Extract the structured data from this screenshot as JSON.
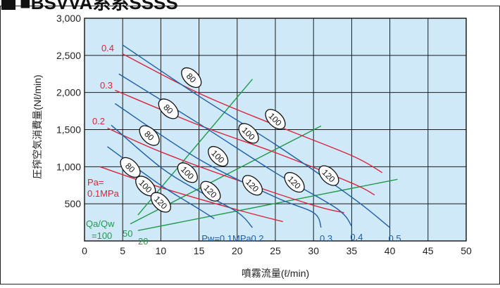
{
  "heading": "■BSVVA系系SSSS",
  "chart_data": {
    "type": "line",
    "xlabel": "噴霧流量(ℓ/min)",
    "ylabel": "圧搾空気消費量(Nℓ/min)",
    "xlim": [
      0,
      50
    ],
    "ylim": [
      0,
      3000
    ],
    "x_ticks": [
      0,
      5,
      10,
      15,
      20,
      25,
      30,
      35,
      40,
      45,
      50
    ],
    "x_tick_labels": [
      "0",
      "5",
      "10",
      "15",
      "20",
      "25",
      "30",
      "35",
      "40",
      "45",
      "50"
    ],
    "y_ticks": [
      500,
      1000,
      1500,
      2000,
      2500,
      3000
    ],
    "y_tick_labels": [
      "500",
      "1,000",
      "1,500",
      "2,000",
      "2,500",
      "3,000"
    ],
    "grid": true,
    "colors": {
      "plot_bg": "#cfe9f8",
      "grid": "#1a1a1a",
      "pa": "#d8253c",
      "pw": "#1f5fa8",
      "ratio": "#1f9a4a"
    },
    "air_pressure_curves": [
      {
        "label": "0.4",
        "points": [
          [
            5,
            2520
          ],
          [
            15,
            1990
          ],
          [
            25,
            1560
          ],
          [
            35,
            1150
          ],
          [
            39,
            920
          ]
        ]
      },
      {
        "label": "0.3",
        "points": [
          [
            4,
            2030
          ],
          [
            15,
            1560
          ],
          [
            25,
            1190
          ],
          [
            35,
            780
          ],
          [
            38,
            620
          ]
        ]
      },
      {
        "label": "0.2",
        "points": [
          [
            3,
            1520
          ],
          [
            10,
            1200
          ],
          [
            20,
            820
          ],
          [
            30,
            480
          ],
          [
            34,
            380
          ]
        ]
      },
      {
        "label": "Pa=\n0.1MPa",
        "points": [
          [
            2,
            1000
          ],
          [
            10,
            720
          ],
          [
            20,
            420
          ],
          [
            26,
            260
          ]
        ]
      }
    ],
    "water_pressure_curves": [
      {
        "label": "0.5",
        "points": [
          [
            5,
            2640
          ],
          [
            15,
            1950
          ],
          [
            25,
            1300
          ],
          [
            35,
            590
          ],
          [
            40,
            180
          ]
        ]
      },
      {
        "label": "0.4",
        "points": [
          [
            4.5,
            2250
          ],
          [
            15,
            1580
          ],
          [
            25,
            920
          ],
          [
            33,
            440
          ],
          [
            35,
            200
          ]
        ]
      },
      {
        "label": "0.3",
        "points": [
          [
            4,
            1850
          ],
          [
            15,
            1100
          ],
          [
            25,
            590
          ],
          [
            30,
            380
          ],
          [
            31,
            180
          ]
        ]
      },
      {
        "label": "0.2",
        "points": [
          [
            3.5,
            1560
          ],
          [
            10,
            990
          ],
          [
            15,
            670
          ],
          [
            20,
            390
          ],
          [
            22,
            180
          ]
        ]
      },
      {
        "label": "Pw=0.1MPa",
        "points": [
          [
            3,
            1270
          ],
          [
            10,
            750
          ],
          [
            15,
            430
          ],
          [
            17,
            300
          ]
        ]
      }
    ],
    "qa_qw_lines": [
      {
        "label": "20",
        "points": [
          [
            7,
            140
          ],
          [
            41,
            830
          ]
        ]
      },
      {
        "label": "50",
        "points": [
          [
            6,
            230
          ],
          [
            31,
            1550
          ]
        ]
      },
      {
        "label": "=100",
        "points": [
          [
            7,
            350
          ],
          [
            22,
            2180
          ]
        ]
      }
    ],
    "qa_qw_prefix": "Qa/Qw",
    "flow_markers": [
      {
        "label": "80",
        "x": 14,
        "y": 2200
      },
      {
        "label": "80",
        "x": 11,
        "y": 1780
      },
      {
        "label": "80",
        "x": 8.5,
        "y": 1420
      },
      {
        "label": "80",
        "x": 6,
        "y": 990
      },
      {
        "label": "100",
        "x": 25,
        "y": 1640
      },
      {
        "label": "100",
        "x": 21.5,
        "y": 1450
      },
      {
        "label": "100",
        "x": 17.5,
        "y": 1140
      },
      {
        "label": "100",
        "x": 13.5,
        "y": 920
      },
      {
        "label": "100",
        "x": 8,
        "y": 740
      },
      {
        "label": "120",
        "x": 32,
        "y": 880
      },
      {
        "label": "120",
        "x": 27.5,
        "y": 790
      },
      {
        "label": "120",
        "x": 22,
        "y": 750
      },
      {
        "label": "120",
        "x": 16.5,
        "y": 670
      },
      {
        "label": "120",
        "x": 10,
        "y": 520
      }
    ]
  }
}
